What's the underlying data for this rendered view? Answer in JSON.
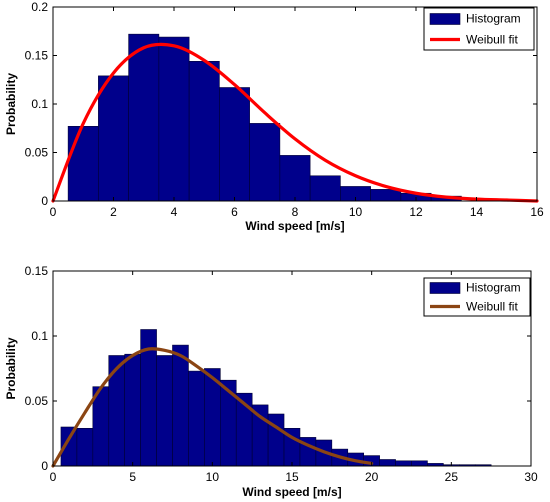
{
  "chart_data": [
    {
      "type": "bar",
      "subtype": "histogram-with-fit",
      "xlabel": "Wind speed [m/s]",
      "ylabel": "Probability",
      "xlim": [
        0,
        16
      ],
      "ylim": [
        0,
        0.2
      ],
      "xticks": [
        0,
        2,
        4,
        6,
        8,
        10,
        12,
        14,
        16
      ],
      "yticks": [
        0,
        0.05,
        0.1,
        0.15,
        0.2
      ],
      "ytick_labels": [
        "0",
        "0.05",
        "0.1",
        "0.15",
        "0.2"
      ],
      "grid": false,
      "legend_position": "top-right",
      "bar_color": "#00008b",
      "fit_color": "#ff0000",
      "series": [
        {
          "name": "Histogram",
          "kind": "bars",
          "bin_edges": [
            0.5,
            1.5,
            2.5,
            3.5,
            4.5,
            5.5,
            6.5,
            7.5,
            8.5,
            9.5,
            10.5,
            11.5,
            12.5,
            13.5
          ],
          "values": [
            0.077,
            0.129,
            0.172,
            0.169,
            0.144,
            0.117,
            0.08,
            0.047,
            0.026,
            0.015,
            0.012,
            0.008,
            0.005
          ]
        },
        {
          "name": "Weibull fit",
          "kind": "line",
          "x": [
            0,
            1,
            2,
            3,
            4,
            5,
            6,
            7,
            8,
            9,
            10,
            11,
            12,
            13,
            14,
            15,
            16
          ],
          "y": [
            0,
            0.08,
            0.132,
            0.158,
            0.16,
            0.145,
            0.12,
            0.091,
            0.064,
            0.042,
            0.026,
            0.015,
            0.008,
            0.004,
            0.002,
            0.001,
            0.0
          ]
        }
      ]
    },
    {
      "type": "bar",
      "subtype": "histogram-with-fit",
      "xlabel": "Wind speed [m/s]",
      "ylabel": "Probability",
      "xlim": [
        0,
        30
      ],
      "ylim": [
        0,
        0.15
      ],
      "xticks": [
        0,
        5,
        10,
        15,
        20,
        25,
        30
      ],
      "yticks": [
        0,
        0.05,
        0.1,
        0.15
      ],
      "ytick_labels": [
        "0",
        "0.05",
        "0.1",
        "0.15"
      ],
      "grid": false,
      "legend_position": "top-right",
      "bar_color": "#00008b",
      "fit_color": "#8b4513",
      "series": [
        {
          "name": "Histogram",
          "kind": "bars",
          "bin_edges": [
            0.5,
            1.5,
            2.5,
            3.5,
            4.5,
            5.5,
            6.5,
            7.5,
            8.5,
            9.5,
            10.5,
            11.5,
            12.5,
            13.5,
            14.5,
            15.5,
            16.5,
            17.5,
            18.5,
            19.5,
            20.5,
            21.5,
            22.5,
            23.5,
            24.5,
            25.5,
            26.5,
            27.5
          ],
          "values": [
            0.03,
            0.029,
            0.061,
            0.085,
            0.086,
            0.105,
            0.085,
            0.093,
            0.073,
            0.075,
            0.066,
            0.056,
            0.047,
            0.04,
            0.029,
            0.022,
            0.02,
            0.013,
            0.01,
            0.008,
            0.005,
            0.004,
            0.004,
            0.002,
            0.001,
            0.001,
            0.001
          ]
        },
        {
          "name": "Weibull fit",
          "kind": "line",
          "x": [
            0,
            1,
            2,
            3,
            4,
            5,
            6,
            7,
            8,
            9,
            10,
            11,
            12,
            13,
            14,
            15,
            16,
            17,
            18,
            19,
            20
          ],
          "y": [
            0,
            0.021,
            0.041,
            0.06,
            0.075,
            0.085,
            0.09,
            0.089,
            0.085,
            0.077,
            0.068,
            0.058,
            0.048,
            0.038,
            0.03,
            0.022,
            0.016,
            0.011,
            0.007,
            0.004,
            0.002
          ]
        }
      ]
    }
  ]
}
